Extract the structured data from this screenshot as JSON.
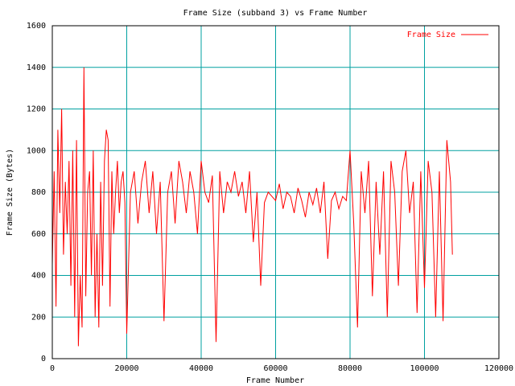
{
  "chart_data": {
    "type": "line",
    "title": "Frame Size (subband 3) vs Frame Number",
    "xlabel": "Frame Number",
    "ylabel": "Frame Size (Bytes)",
    "xlim": [
      0,
      120000
    ],
    "xticks": [
      0,
      20000,
      40000,
      60000,
      80000,
      100000,
      120000
    ],
    "ylim": [
      0,
      1600
    ],
    "yticks": [
      0,
      200,
      400,
      600,
      800,
      1000,
      1200,
      1400,
      1600
    ],
    "grid": true,
    "legend": "upper right",
    "x": [
      0,
      500,
      1000,
      1500,
      2000,
      2500,
      3000,
      3500,
      4000,
      4500,
      5000,
      5500,
      6000,
      6500,
      7000,
      7500,
      8000,
      8500,
      9000,
      9500,
      10000,
      10500,
      11000,
      11500,
      12000,
      12500,
      13000,
      13500,
      14000,
      14500,
      15000,
      15500,
      16000,
      16500,
      17000,
      17500,
      18000,
      18500,
      19000,
      19500,
      20000,
      21000,
      22000,
      23000,
      24000,
      25000,
      26000,
      27000,
      28000,
      29000,
      30000,
      31000,
      32000,
      33000,
      34000,
      35000,
      36000,
      37000,
      38000,
      39000,
      40000,
      41000,
      42000,
      43000,
      44000,
      45000,
      46000,
      47000,
      48000,
      49000,
      50000,
      51000,
      52000,
      53000,
      54000,
      55000,
      56000,
      57000,
      58000,
      59000,
      60000,
      61000,
      62000,
      63000,
      64000,
      65000,
      66000,
      67000,
      68000,
      69000,
      70000,
      71000,
      72000,
      73000,
      74000,
      75000,
      76000,
      77000,
      78000,
      79000,
      80000,
      81000,
      82000,
      83000,
      84000,
      85000,
      86000,
      87000,
      88000,
      89000,
      90000,
      91000,
      92000,
      93000,
      94000,
      95000,
      96000,
      97000,
      98000,
      99000,
      100000,
      101000,
      102000,
      103000,
      104000,
      105000,
      106000,
      107000,
      107500
    ],
    "series": [
      {
        "name": "Frame Size",
        "color": "#ff0000",
        "values": [
          450,
          900,
          250,
          1100,
          700,
          1200,
          500,
          850,
          600,
          950,
          350,
          1000,
          200,
          1050,
          60,
          400,
          150,
          1400,
          300,
          800,
          900,
          400,
          1000,
          200,
          600,
          150,
          850,
          350,
          950,
          1100,
          1050,
          250,
          900,
          600,
          800,
          950,
          700,
          850,
          900,
          750,
          120,
          800,
          900,
          650,
          850,
          950,
          700,
          900,
          600,
          850,
          180,
          800,
          900,
          650,
          950,
          850,
          700,
          900,
          800,
          600,
          950,
          800,
          750,
          880,
          80,
          900,
          700,
          850,
          800,
          900,
          780,
          850,
          700,
          900,
          560,
          800,
          350,
          750,
          800,
          780,
          760,
          840,
          720,
          800,
          780,
          700,
          820,
          760,
          680,
          800,
          740,
          820,
          700,
          850,
          480,
          760,
          800,
          720,
          780,
          760,
          1000,
          650,
          150,
          900,
          700,
          950,
          300,
          850,
          500,
          900,
          200,
          950,
          800,
          350,
          900,
          1000,
          700,
          850,
          220,
          900,
          340,
          950,
          800,
          200,
          900,
          180,
          1050,
          850,
          500
        ]
      }
    ]
  }
}
